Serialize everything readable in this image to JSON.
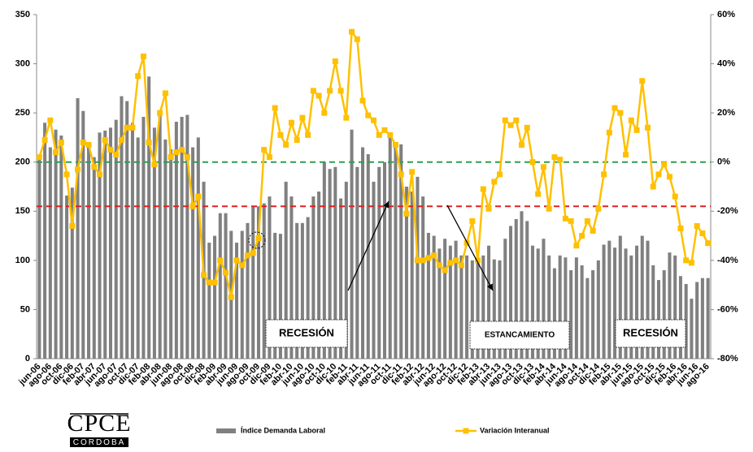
{
  "chart_data": {
    "type": "bar-line",
    "categories": [
      "jun-06",
      null,
      "ago-06",
      null,
      "oct-06",
      null,
      "dic-06",
      null,
      "feb-07",
      null,
      "abr-07",
      null,
      "jun-07",
      null,
      "ago-07",
      null,
      "oct-07",
      null,
      "dic-07",
      null,
      "feb-08",
      null,
      "abr-08",
      null,
      "jun-08",
      null,
      "ago-08",
      null,
      "oct-08",
      null,
      "dic-08",
      null,
      "feb-09",
      null,
      "abr-09",
      null,
      "jun-09",
      null,
      "ago-09",
      null,
      "oct-09",
      null,
      "dic-09",
      null,
      "feb-10",
      null,
      "abr-10",
      null,
      "jun-10",
      null,
      "ago-10",
      null,
      "oct-10",
      null,
      "dic-10",
      null,
      "feb-11",
      null,
      "abr-11",
      null,
      "jun-11",
      null,
      "ago-11",
      null,
      "oct-11",
      null,
      "dic-11",
      null,
      "feb-12",
      null,
      "abr-12",
      null,
      "jun-12",
      null,
      "ago-12",
      null,
      "oct-12",
      null,
      "dic-12",
      null,
      "feb-13",
      null,
      "abr-13",
      null,
      "jun-13",
      null,
      "ago-13",
      null,
      "oct-13",
      null,
      "dic-13",
      null,
      "feb-14",
      null,
      "abr-14",
      null,
      "jun-14",
      null,
      "ago-14",
      null,
      "oct-14",
      null,
      "dic-14",
      null,
      "feb-15",
      null,
      "abr-15",
      null,
      "jun-15",
      null,
      "ago-15",
      null,
      "oct-15",
      null,
      "dic-15",
      null,
      "feb-16",
      null,
      "abr-16",
      null,
      "jun-16",
      null,
      "ago-16"
    ],
    "series": [
      {
        "name": "Índice Demanda Laboral",
        "type": "bar",
        "color": "#808080",
        "axis": "y",
        "values": [
          205,
          240,
          215,
          233,
          227,
          166,
          174,
          265,
          252,
          215,
          205,
          230,
          232,
          235,
          243,
          267,
          262,
          240,
          225,
          246,
          287,
          235,
          249,
          223,
          213,
          241,
          246,
          248,
          215,
          225,
          180,
          118,
          125,
          148,
          148,
          130,
          118,
          130,
          138,
          155,
          155,
          158,
          165,
          128,
          127,
          180,
          165,
          138,
          138,
          144,
          165,
          170,
          200,
          193,
          195,
          163,
          180,
          233,
          195,
          215,
          208,
          180,
          195,
          200,
          225,
          218,
          218,
          175,
          170,
          185,
          165,
          128,
          125,
          112,
          122,
          115,
          120,
          105,
          105,
          100,
          102,
          105,
          115,
          101,
          100,
          122,
          135,
          142,
          150,
          140,
          115,
          112,
          122,
          105,
          92,
          105,
          103,
          90,
          103,
          95,
          82,
          90,
          100,
          116,
          120,
          113,
          125,
          112,
          105,
          115,
          125,
          120,
          95,
          80,
          90,
          108,
          105,
          84,
          76,
          61,
          78,
          82,
          82
        ]
      },
      {
        "name": "Variación Interanual",
        "type": "line",
        "color": "#ffc000",
        "axis": "y2",
        "values": [
          2,
          9,
          17,
          4,
          8,
          -5,
          -26,
          -3,
          8,
          7,
          -2,
          -5,
          9,
          5,
          3,
          9,
          14,
          14,
          35,
          43,
          8,
          -1,
          20,
          28,
          2,
          4,
          5,
          2,
          -18,
          -14,
          -46,
          -49,
          -49,
          -40,
          -45,
          -55,
          -40,
          -42,
          -38,
          -37,
          -31,
          5,
          2,
          22,
          11,
          7,
          16,
          9,
          18,
          11,
          29,
          27,
          20,
          29,
          41,
          29,
          18,
          53,
          50,
          25,
          19,
          17,
          11,
          13,
          11,
          7,
          -5,
          -21,
          -4,
          -40,
          -40,
          -39,
          -38,
          -42,
          -44,
          -41,
          -40,
          -42,
          -33,
          -24,
          -40,
          -11,
          -19,
          -8,
          -5,
          17,
          15,
          17,
          7,
          14,
          0,
          -13,
          -2,
          -19,
          2,
          1,
          -23,
          -24,
          -34,
          -30,
          -24,
          -28,
          -19,
          -5,
          12,
          22,
          20,
          3,
          17,
          13,
          33,
          14,
          -10,
          -5,
          -1,
          -6,
          -14,
          -27,
          -40,
          -41,
          -26,
          -29,
          -33
        ]
      }
    ],
    "ylim": [
      0,
      350
    ],
    "yticks": [
      0,
      50,
      100,
      150,
      200,
      250,
      300,
      350
    ],
    "y2lim": [
      -80,
      60
    ],
    "y2ticks": [
      {
        "value": -80,
        "label": "-80%"
      },
      {
        "value": -60,
        "label": "-60%"
      },
      {
        "value": -40,
        "label": "-40%"
      },
      {
        "value": -20,
        "label": "-20%"
      },
      {
        "value": 0,
        "label": "0%"
      },
      {
        "value": 20,
        "label": "20%"
      },
      {
        "value": 40,
        "label": "40%"
      },
      {
        "value": 60,
        "label": "60%"
      }
    ],
    "reference_lines": [
      {
        "axis": "y2",
        "value": 0,
        "color": "#2e9e4f"
      },
      {
        "axis": "y2",
        "value": -18,
        "color": "#e02020"
      }
    ],
    "annotations": [
      "RECESIÓN",
      "ESTANCAMIENTO",
      "RECESIÓN"
    ],
    "legend": "bottom"
  },
  "logo": {
    "title": "CPCE",
    "subtitle": "CORDOBA"
  }
}
